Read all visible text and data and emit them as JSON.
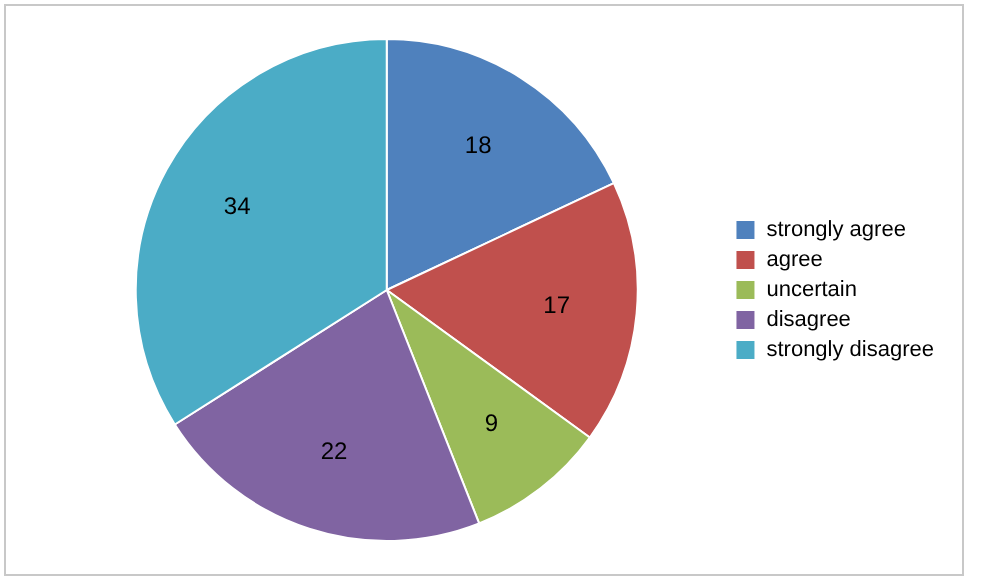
{
  "chart_data": {
    "type": "pie",
    "categories": [
      "strongly agree",
      "agree",
      "uncertain",
      "disagree",
      "strongly disagree"
    ],
    "values": [
      18,
      17,
      9,
      22,
      34
    ],
    "colors": [
      "#4f81bd",
      "#c0504d",
      "#9bbb59",
      "#8064a2",
      "#4bacc6"
    ],
    "data_labels": true,
    "legend": "right"
  }
}
